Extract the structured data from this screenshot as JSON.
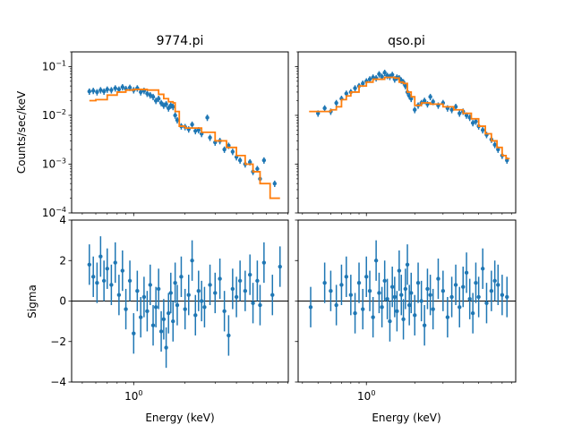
{
  "chart_data": [
    {
      "type": "scatter",
      "title": "9774.pi",
      "xlabel": "",
      "ylabel": "Counts/sec/keV",
      "xscale": "log",
      "yscale": "log",
      "xlim": [
        0.433,
        8.05
      ],
      "ylim": [
        0.0001,
        0.2
      ],
      "yticks": [
        {
          "base": "10",
          "exp": "−4",
          "v": 0.0001
        },
        {
          "base": "10",
          "exp": "−3",
          "v": 0.001
        },
        {
          "base": "10",
          "exp": "−2",
          "v": 0.01
        },
        {
          "base": "10",
          "exp": "−1",
          "v": 0.1
        }
      ],
      "data": {
        "x": [
          0.55,
          0.58,
          0.61,
          0.64,
          0.67,
          0.7,
          0.74,
          0.78,
          0.82,
          0.86,
          0.9,
          0.95,
          1.0,
          1.05,
          1.1,
          1.15,
          1.2,
          1.25,
          1.3,
          1.35,
          1.4,
          1.45,
          1.5,
          1.55,
          1.6,
          1.65,
          1.7,
          1.75,
          1.8,
          1.9,
          2.0,
          2.1,
          2.2,
          2.3,
          2.4,
          2.5,
          2.7,
          2.8,
          3.0,
          3.2,
          3.4,
          3.6,
          3.8,
          4.0,
          4.2,
          4.5,
          4.8,
          5.0,
          5.3,
          5.5,
          5.8,
          6.7
        ],
        "y": [
          0.031,
          0.032,
          0.03,
          0.033,
          0.031,
          0.034,
          0.033,
          0.036,
          0.034,
          0.038,
          0.035,
          0.037,
          0.033,
          0.036,
          0.03,
          0.032,
          0.028,
          0.026,
          0.024,
          0.02,
          0.022,
          0.018,
          0.016,
          0.017,
          0.014,
          0.016,
          0.015,
          0.01,
          0.008,
          0.006,
          0.0058,
          0.0052,
          0.0065,
          0.0048,
          0.005,
          0.0042,
          0.009,
          0.0035,
          0.0028,
          0.003,
          0.002,
          0.0024,
          0.0018,
          0.0014,
          0.0012,
          0.001,
          0.0011,
          0.0007,
          0.0008,
          0.0005,
          0.0012,
          0.0004
        ],
        "rel_err": 0.15
      },
      "model": {
        "x": [
          0.55,
          0.6,
          0.7,
          0.8,
          0.9,
          1.0,
          1.2,
          1.4,
          1.5,
          1.6,
          1.7,
          1.75,
          1.85,
          2.0,
          2.5,
          3.0,
          3.5,
          4.0,
          4.5,
          5.0,
          5.5,
          6.0,
          6.3,
          7.2
        ],
        "y": [
          0.02,
          0.021,
          0.026,
          0.03,
          0.033,
          0.034,
          0.033,
          0.027,
          0.022,
          0.019,
          0.018,
          0.012,
          0.006,
          0.0055,
          0.0045,
          0.003,
          0.0022,
          0.0015,
          0.001,
          0.0007,
          0.0004,
          0.0004,
          0.0002,
          0.0002
        ]
      }
    },
    {
      "type": "scatter",
      "title": "qso.pi",
      "xlabel": "",
      "ylabel": "",
      "xscale": "log",
      "yscale": "log",
      "xlim": [
        0.376,
        8.5
      ],
      "ylim": [
        0.0001,
        0.2
      ],
      "data": {
        "x": [
          0.5,
          0.55,
          0.6,
          0.65,
          0.7,
          0.75,
          0.8,
          0.85,
          0.9,
          0.95,
          1.0,
          1.05,
          1.1,
          1.15,
          1.2,
          1.25,
          1.3,
          1.35,
          1.4,
          1.45,
          1.5,
          1.55,
          1.6,
          1.65,
          1.7,
          1.75,
          1.8,
          1.85,
          1.9,
          2.0,
          2.1,
          2.2,
          2.3,
          2.4,
          2.5,
          2.6,
          2.8,
          3.0,
          3.2,
          3.4,
          3.6,
          3.8,
          4.0,
          4.2,
          4.4,
          4.6,
          4.8,
          5.0,
          5.3,
          5.6,
          6.0,
          6.3,
          6.6,
          7.0,
          7.5
        ],
        "y": [
          0.011,
          0.014,
          0.012,
          0.018,
          0.022,
          0.028,
          0.03,
          0.036,
          0.04,
          0.045,
          0.05,
          0.055,
          0.06,
          0.058,
          0.07,
          0.062,
          0.075,
          0.065,
          0.062,
          0.068,
          0.055,
          0.06,
          0.058,
          0.052,
          0.048,
          0.04,
          0.03,
          0.025,
          0.022,
          0.013,
          0.016,
          0.018,
          0.02,
          0.017,
          0.024,
          0.019,
          0.016,
          0.018,
          0.014,
          0.013,
          0.015,
          0.011,
          0.012,
          0.01,
          0.009,
          0.007,
          0.0075,
          0.006,
          0.005,
          0.004,
          0.0032,
          0.0025,
          0.002,
          0.0015,
          0.0012
        ],
        "rel_err": 0.15
      },
      "model": {
        "x": [
          0.44,
          0.55,
          0.6,
          0.65,
          0.7,
          0.75,
          0.8,
          0.9,
          1.0,
          1.1,
          1.3,
          1.5,
          1.6,
          1.7,
          1.8,
          1.9,
          2.0,
          2.2,
          2.5,
          3.0,
          3.5,
          4.0,
          4.5,
          5.0,
          5.5,
          6.0,
          6.5,
          7.0,
          7.4,
          7.8
        ],
        "y": [
          0.012,
          0.012,
          0.013,
          0.015,
          0.021,
          0.025,
          0.03,
          0.04,
          0.048,
          0.055,
          0.06,
          0.058,
          0.048,
          0.045,
          0.03,
          0.024,
          0.016,
          0.018,
          0.017,
          0.015,
          0.013,
          0.011,
          0.0085,
          0.006,
          0.0042,
          0.003,
          0.0022,
          0.0015,
          0.0013,
          0.0013
        ]
      }
    },
    {
      "type": "scatter",
      "title": "",
      "xlabel": "Energy (keV)",
      "ylabel": "Sigma",
      "xscale": "log",
      "yscale": "linear",
      "xlim": [
        0.433,
        8.05
      ],
      "ylim": [
        -4,
        4
      ],
      "yticks": [
        -4,
        -2,
        0,
        2,
        4
      ],
      "xticks": [
        {
          "base": "10",
          "exp": "0",
          "v": 1
        }
      ],
      "data": {
        "x": [
          0.55,
          0.58,
          0.61,
          0.64,
          0.67,
          0.7,
          0.74,
          0.78,
          0.82,
          0.86,
          0.9,
          0.95,
          1.0,
          1.05,
          1.1,
          1.15,
          1.2,
          1.25,
          1.3,
          1.35,
          1.4,
          1.45,
          1.5,
          1.55,
          1.6,
          1.65,
          1.7,
          1.75,
          1.8,
          1.9,
          2.0,
          2.1,
          2.2,
          2.3,
          2.4,
          2.5,
          2.6,
          2.8,
          3.0,
          3.2,
          3.4,
          3.6,
          3.8,
          4.0,
          4.2,
          4.5,
          4.8,
          5.0,
          5.3,
          5.5,
          5.8,
          6.5,
          7.2
        ],
        "y": [
          1.8,
          1.2,
          0.9,
          2.2,
          1.0,
          1.6,
          0.8,
          1.9,
          0.3,
          1.5,
          -0.4,
          1.0,
          -1.6,
          0.5,
          -0.8,
          0.2,
          -0.5,
          0.8,
          -1.2,
          -0.3,
          0.6,
          -1.5,
          -0.9,
          -2.3,
          -0.6,
          0.4,
          -1.0,
          0.9,
          -0.2,
          1.2,
          -0.4,
          0.3,
          2.0,
          -0.7,
          0.5,
          0.0,
          -0.3,
          0.8,
          0.4,
          1.1,
          -0.5,
          -1.7,
          0.6,
          0.2,
          1.0,
          0.5,
          1.3,
          -0.1,
          1.0,
          -0.2,
          1.9,
          0.3,
          1.7
        ],
        "err": 1
      }
    },
    {
      "type": "scatter",
      "title": "",
      "xlabel": "Energy (keV)",
      "ylabel": "",
      "xscale": "log",
      "yscale": "linear",
      "xlim": [
        0.376,
        8.5
      ],
      "ylim": [
        -4,
        4
      ],
      "xticks": [
        {
          "base": "10",
          "exp": "0",
          "v": 1
        }
      ],
      "data": {
        "x": [
          0.45,
          0.55,
          0.6,
          0.65,
          0.7,
          0.75,
          0.8,
          0.85,
          0.9,
          0.95,
          1.0,
          1.05,
          1.1,
          1.15,
          1.2,
          1.25,
          1.3,
          1.35,
          1.4,
          1.45,
          1.5,
          1.55,
          1.6,
          1.65,
          1.7,
          1.75,
          1.8,
          1.85,
          1.9,
          2.0,
          2.1,
          2.2,
          2.3,
          2.4,
          2.5,
          2.6,
          2.8,
          3.0,
          3.2,
          3.4,
          3.6,
          3.8,
          4.0,
          4.2,
          4.4,
          4.6,
          4.8,
          5.0,
          5.3,
          5.6,
          6.0,
          6.3,
          6.6,
          7.0,
          7.5
        ],
        "y": [
          -0.3,
          0.9,
          0.5,
          -0.2,
          0.8,
          1.2,
          0.3,
          -0.6,
          0.9,
          -0.4,
          1.2,
          0.5,
          -0.8,
          2.0,
          0.4,
          -0.3,
          1.0,
          0.1,
          -1.0,
          0.7,
          0.2,
          -0.5,
          1.5,
          0.3,
          -0.9,
          0.6,
          1.8,
          -0.2,
          0.4,
          -0.7,
          0.9,
          0.0,
          -1.2,
          0.6,
          0.3,
          -0.4,
          1.1,
          0.5,
          -0.8,
          0.2,
          0.8,
          -0.3,
          0.7,
          1.4,
          0.1,
          -0.6,
          0.9,
          0.2,
          1.6,
          -0.1,
          0.5,
          1.0,
          0.8,
          0.3,
          0.2
        ],
        "err": 1
      }
    }
  ],
  "colors": {
    "data": "#1f77b4",
    "model": "#ff7f0e",
    "zero_line": "#000000"
  }
}
